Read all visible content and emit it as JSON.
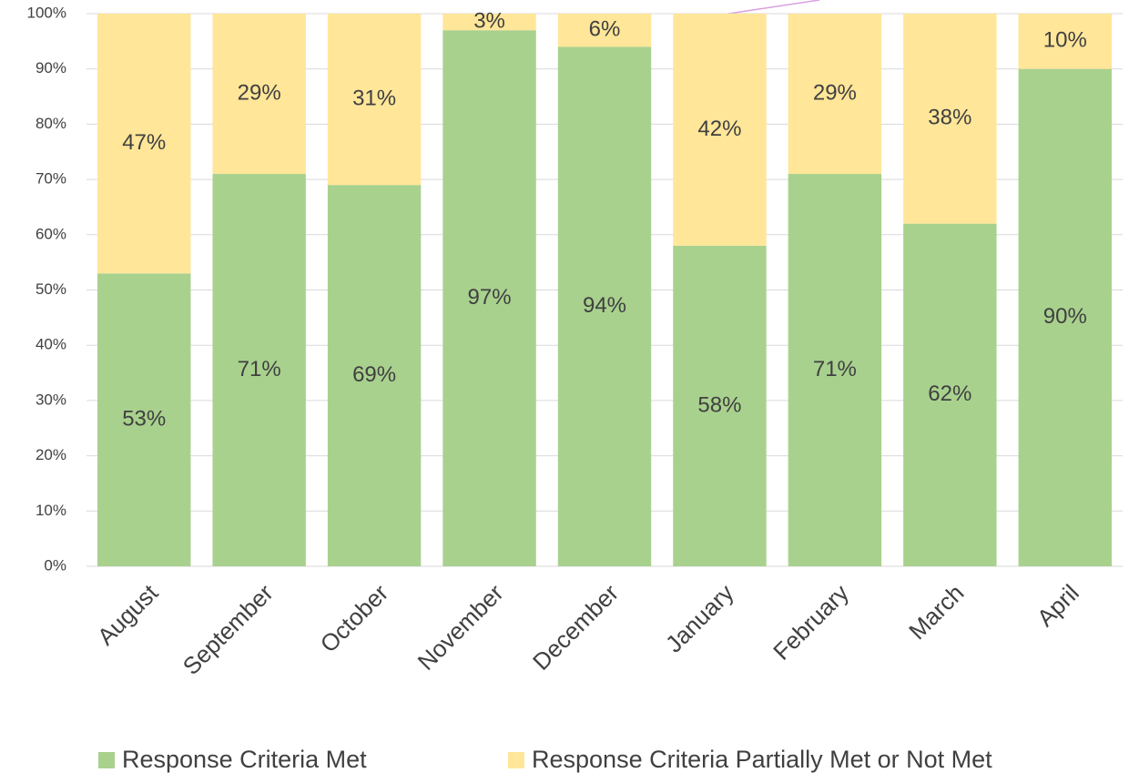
{
  "chart_data": {
    "type": "stacked_bar",
    "categories": [
      "August",
      "September",
      "October",
      "November",
      "December",
      "January",
      "February",
      "March",
      "April"
    ],
    "series": [
      {
        "name": "Response Criteria Met",
        "color": "#a9d18e",
        "values": [
          53,
          71,
          69,
          97,
          94,
          58,
          71,
          62,
          90
        ],
        "value_labels": [
          "53%",
          "71%",
          "69%",
          "97%",
          "94%",
          "58%",
          "71%",
          "62%",
          "90%"
        ]
      },
      {
        "name": "Response Criteria Partially Met or Not Met",
        "color": "#ffe699",
        "values": [
          47,
          29,
          31,
          3,
          6,
          42,
          29,
          38,
          10
        ],
        "value_labels": [
          "47%",
          "29%",
          "31%",
          "3%",
          "6%",
          "42%",
          "29%",
          "38%",
          "10%"
        ]
      }
    ],
    "ylim": [
      0,
      100
    ],
    "yticks": [
      {
        "value": 0,
        "label": "0%"
      },
      {
        "value": 10,
        "label": "10%"
      },
      {
        "value": 20,
        "label": "20%"
      },
      {
        "value": 30,
        "label": "30%"
      },
      {
        "value": 40,
        "label": "40%"
      },
      {
        "value": 50,
        "label": "50%"
      },
      {
        "value": 60,
        "label": "60%"
      },
      {
        "value": 70,
        "label": "70%"
      },
      {
        "value": 80,
        "label": "80%"
      },
      {
        "value": 90,
        "label": "90%"
      },
      {
        "value": 100,
        "label": "100%"
      }
    ],
    "grid": true,
    "legend": "bottom"
  }
}
